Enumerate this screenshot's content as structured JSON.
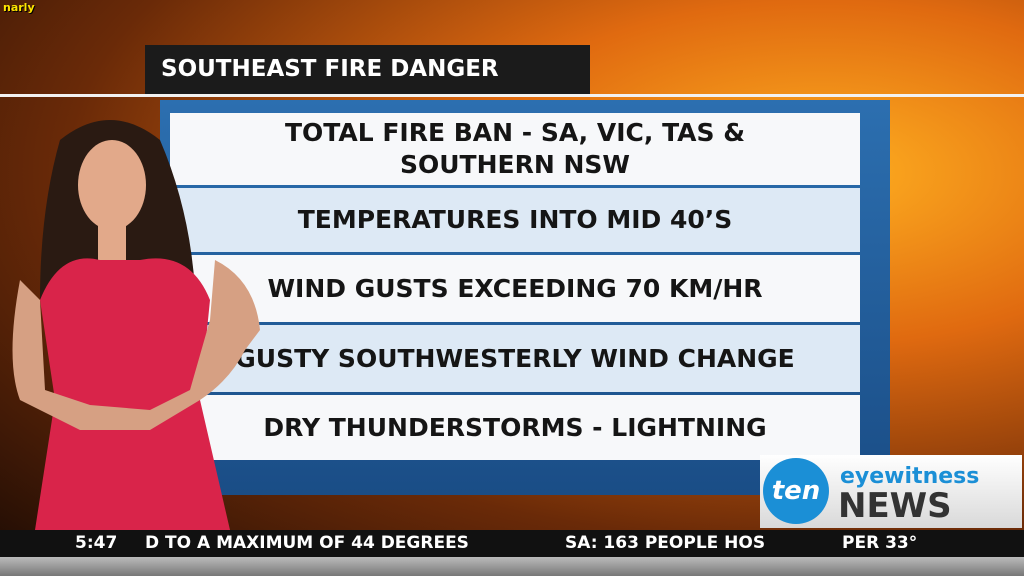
{
  "channel_tag": "narly",
  "graphic": {
    "title": "SOUTHEAST FIRE DANGER",
    "items": [
      "TOTAL FIRE BAN - SA, VIC, TAS & SOUTHERN NSW",
      "TEMPERATURES INTO MID 40’S",
      "WIND GUSTS EXCEEDING 70 KM/HR",
      "GUSTY SOUTHWESTERLY WIND CHANGE",
      "DRY THUNDERSTORMS - LIGHTNING"
    ]
  },
  "logo": {
    "badge": "ten",
    "top": "eyewitness",
    "bottom": "NEWS"
  },
  "ticker": {
    "time": "5:47",
    "items": [
      "D TO A MAXIMUM OF 44 DEGREES",
      "SA: 163 PEOPLE HOS"
    ],
    "weather": "PER 33°"
  }
}
